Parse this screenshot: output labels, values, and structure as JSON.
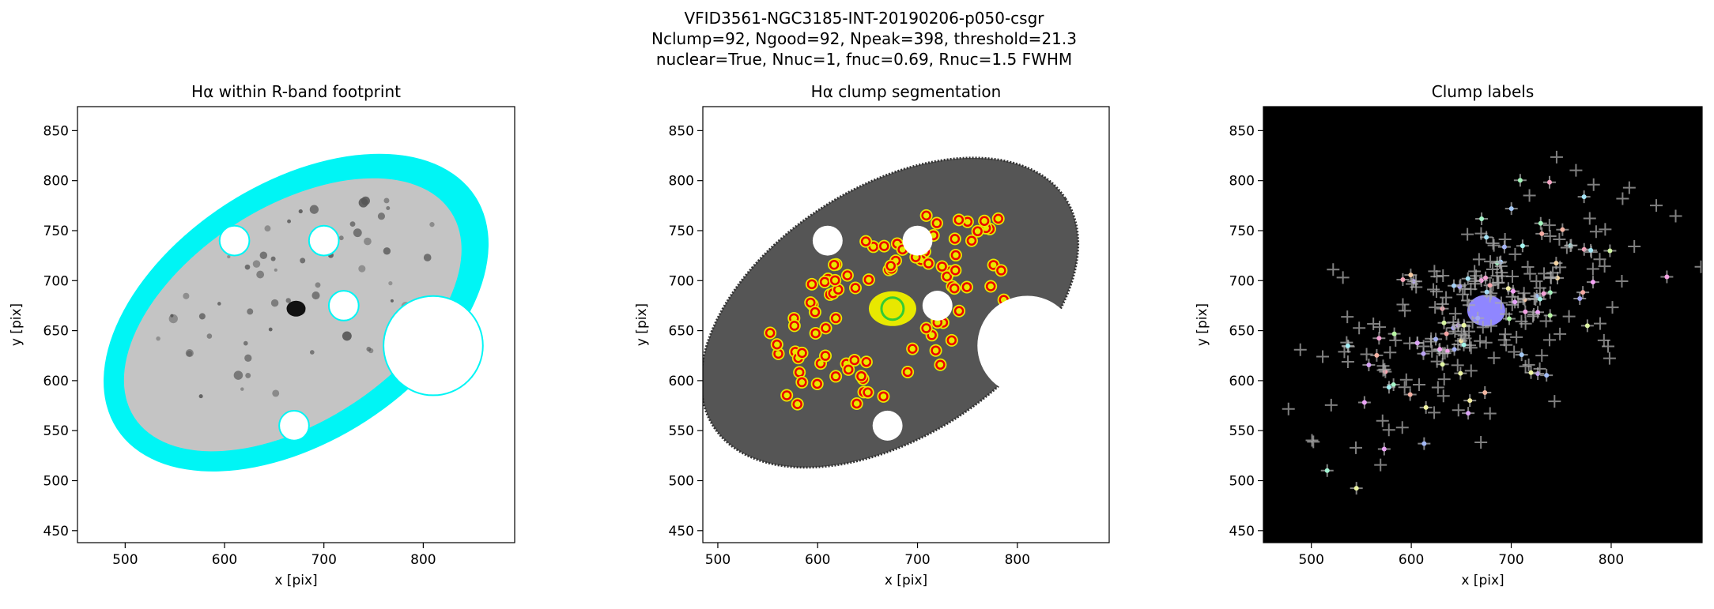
{
  "figure": {
    "title_lines": [
      "VFID3561-NGC3185-INT-20190206-p050-csgr",
      "Nclump=92, Ngood=92, Npeak=398, threshold=21.3",
      "nuclear=True, Nnuc=1, fnuc=0.69, Rnuc=1.5 FWHM"
    ]
  },
  "chart_data": [
    {
      "type": "image",
      "title": "Hα within R-band footprint",
      "xlabel": "x [pix]",
      "ylabel": "y [pix]",
      "xlim": [
        452,
        892
      ],
      "ylim": [
        438,
        874
      ],
      "xticks": [
        500,
        600,
        700,
        800
      ],
      "yticks": [
        450,
        500,
        550,
        600,
        650,
        700,
        750,
        800,
        850
      ],
      "background": "#ffffff"
    },
    {
      "type": "image",
      "title": "Hα clump segmentation",
      "xlabel": "x [pix]",
      "ylabel": "y [pix]",
      "xlim": [
        485,
        892
      ],
      "ylim": [
        438,
        874
      ],
      "xticks": [
        500,
        600,
        700,
        800
      ],
      "yticks": [
        450,
        500,
        550,
        600,
        650,
        700,
        750,
        800,
        850
      ],
      "background": "#ffffff"
    },
    {
      "type": "image",
      "title": "Clump labels",
      "xlabel": "x [pix]",
      "ylabel": "y [pix]",
      "xlim": [
        452,
        891
      ],
      "ylim": [
        438,
        874
      ],
      "xticks": [
        500,
        600,
        700,
        800
      ],
      "yticks": [
        450,
        500,
        550,
        600,
        650,
        700,
        750,
        800,
        850
      ],
      "background": "#000000"
    }
  ]
}
